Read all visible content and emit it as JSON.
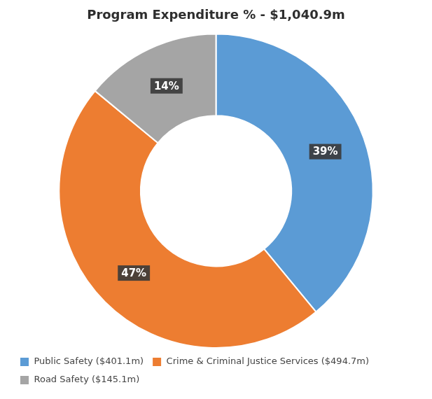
{
  "chart_data": {
    "type": "doughnut",
    "title": "Program Expenditure % - $1,040.9m",
    "categories": [
      "Public Safety ($401.1m)",
      "Crime & Criminal Justice Services ($494.7m)",
      "Road Safety ($145.1m)"
    ],
    "values": [
      39,
      47,
      14
    ],
    "value_labels": [
      "39%",
      "47%",
      "14%"
    ],
    "colors": [
      "#5B9BD5",
      "#ED7D31",
      "#A5A5A5"
    ],
    "data_labels": true,
    "legend": "bottom"
  }
}
